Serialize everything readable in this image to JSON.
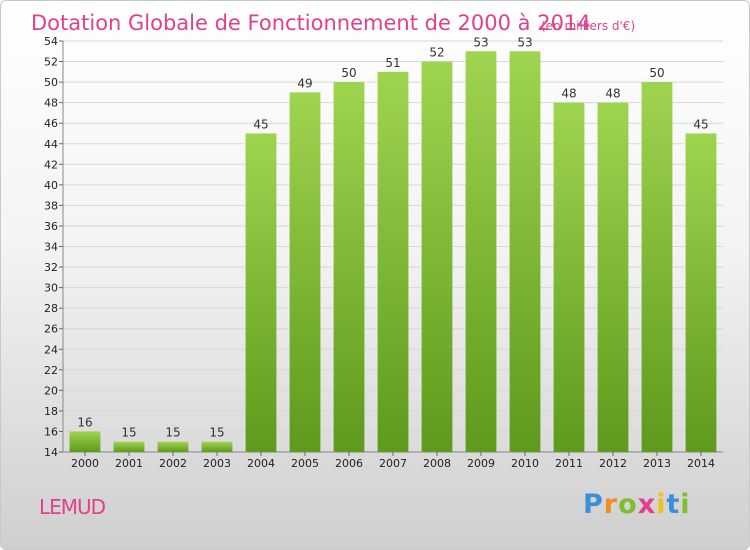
{
  "chart_data": {
    "type": "bar",
    "title": "Dotation Globale de Fonctionnement de 2000 à 2014",
    "subtitle": "(en milliers d'€)",
    "categories": [
      "2000",
      "2001",
      "2002",
      "2003",
      "2004",
      "2005",
      "2006",
      "2007",
      "2008",
      "2009",
      "2010",
      "2011",
      "2012",
      "2013",
      "2014"
    ],
    "values": [
      16,
      15,
      15,
      15,
      45,
      49,
      50,
      51,
      52,
      53,
      53,
      48,
      48,
      50,
      45
    ],
    "ylim": [
      14,
      54
    ],
    "yticks": [
      14,
      16,
      18,
      20,
      22,
      24,
      26,
      28,
      30,
      32,
      34,
      36,
      38,
      40,
      42,
      44,
      46,
      48,
      50,
      52,
      54
    ],
    "grid": true,
    "bar_color_top": "#9fd44f",
    "bar_color_bottom": "#5e9a1c"
  },
  "commune": "LEMUD",
  "logo": {
    "letters": [
      "P",
      "r",
      "o",
      "x",
      "i",
      "t",
      "i"
    ],
    "colors": [
      "#3a8fd6",
      "#f28c1c",
      "#7fbf2e",
      "#e0408e",
      "#f2c21c",
      "#3a8fd6",
      "#7fbf2e"
    ]
  }
}
